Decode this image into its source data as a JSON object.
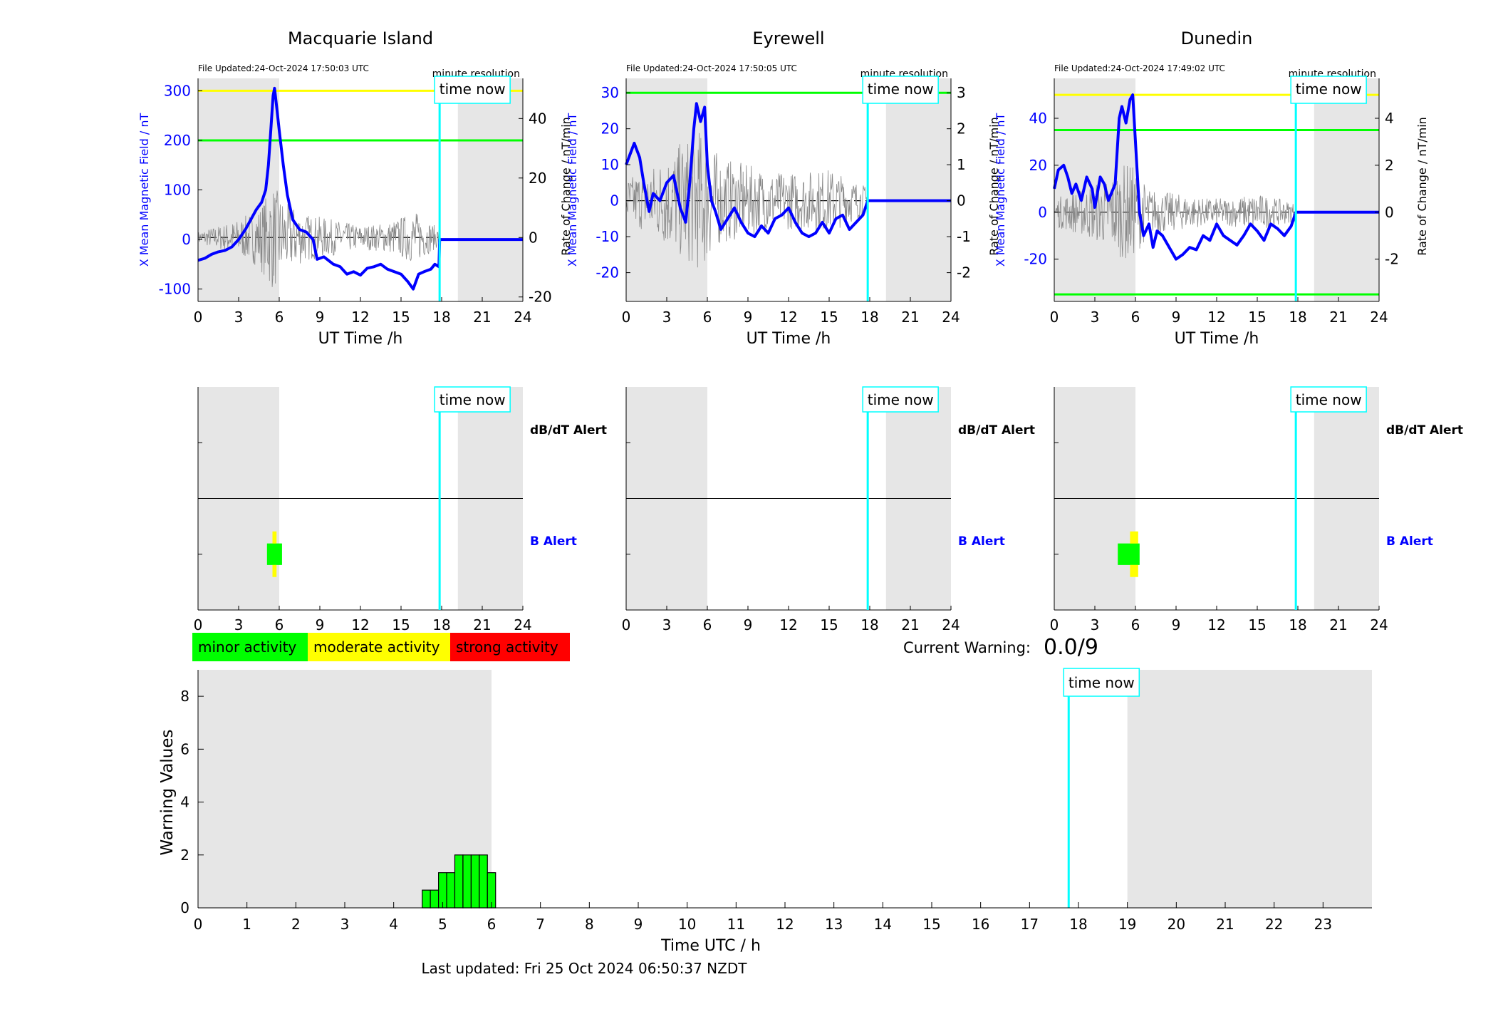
{
  "footer": {
    "last_updated": "Last updated: Fri 25 Oct 2024 06:50:37 NZDT"
  },
  "colors": {
    "blue": "#0000ff",
    "green": "#00ff00",
    "yellow": "#ffff00",
    "red": "#ff0000",
    "cyan": "#00ffff",
    "shade": "#e6e6e6"
  },
  "time_now_label": "time now",
  "x_axis_label": "UT Time /h",
  "file_updated_suffix": "minute resolution",
  "stations": [
    {
      "name": "Macquarie Island",
      "file_updated": "File Updated:24-Oct-2024 17:50:03 UTC",
      "ylabel_left": "X Mean Magnetic Field / nT",
      "ylabel_right": "Rate of Change / nT/min",
      "ylim_left": [
        -125,
        325
      ],
      "yticks_left": [
        -100,
        0,
        100,
        200,
        300
      ],
      "ylim_right": [
        -21.5,
        53.5
      ],
      "yticks_right": [
        -20,
        0,
        20,
        40
      ],
      "thresholds": [
        {
          "value": 300,
          "color": "yellow"
        },
        {
          "value": 200,
          "color": "green"
        }
      ],
      "shade": [
        [
          0,
          6
        ],
        [
          19.2,
          24
        ]
      ],
      "time_now": 17.85,
      "x_series": [
        [
          0,
          -42
        ],
        [
          0.5,
          -38
        ],
        [
          1,
          -30
        ],
        [
          1.5,
          -25
        ],
        [
          2,
          -22
        ],
        [
          2.5,
          -15
        ],
        [
          3,
          0
        ],
        [
          3.5,
          20
        ],
        [
          3.9,
          40
        ],
        [
          4.3,
          60
        ],
        [
          4.7,
          75
        ],
        [
          5,
          100
        ],
        [
          5.2,
          150
        ],
        [
          5.4,
          230
        ],
        [
          5.55,
          290
        ],
        [
          5.65,
          305
        ],
        [
          5.8,
          270
        ],
        [
          6,
          220
        ],
        [
          6.3,
          150
        ],
        [
          6.6,
          90
        ],
        [
          7,
          40
        ],
        [
          7.5,
          20
        ],
        [
          8,
          15
        ],
        [
          8.5,
          0
        ],
        [
          8.8,
          -40
        ],
        [
          9.3,
          -35
        ],
        [
          10,
          -50
        ],
        [
          10.5,
          -55
        ],
        [
          11,
          -70
        ],
        [
          11.5,
          -65
        ],
        [
          12,
          -72
        ],
        [
          12.5,
          -58
        ],
        [
          13,
          -55
        ],
        [
          13.5,
          -50
        ],
        [
          14,
          -60
        ],
        [
          14.5,
          -65
        ],
        [
          15,
          -70
        ],
        [
          15.5,
          -85
        ],
        [
          15.9,
          -100
        ],
        [
          16.3,
          -70
        ],
        [
          16.7,
          -65
        ],
        [
          17.2,
          -60
        ],
        [
          17.5,
          -50
        ],
        [
          17.8,
          -55
        ],
        [
          17.85,
          0
        ],
        [
          24,
          0
        ]
      ],
      "noise_amp_right": [
        [
          0,
          2
        ],
        [
          3,
          6
        ],
        [
          4.5,
          10
        ],
        [
          5.5,
          18
        ],
        [
          6.5,
          12
        ],
        [
          8,
          8
        ],
        [
          10,
          6
        ],
        [
          12,
          4
        ],
        [
          14,
          5
        ],
        [
          16,
          9
        ],
        [
          17.8,
          3
        ]
      ],
      "alerts": {
        "dbdt": [],
        "b": [
          {
            "start": 5.1,
            "end": 6.2,
            "color": "green"
          },
          {
            "start": 5.5,
            "end": 5.8,
            "color": "yellow"
          }
        ]
      }
    },
    {
      "name": "Eyrewell",
      "file_updated": "File Updated:24-Oct-2024 17:50:05 UTC",
      "ylabel_left": "X Mean Magnetic Field / nT",
      "ylabel_right": "Rate of Change / nT/min",
      "ylim_left": [
        -28,
        34
      ],
      "yticks_left": [
        -20,
        -10,
        0,
        10,
        20,
        30
      ],
      "ylim_right": [
        -2.8,
        3.4
      ],
      "yticks_right": [
        -2,
        -1,
        0,
        1,
        2,
        3
      ],
      "thresholds": [
        {
          "value": 30,
          "color": "green"
        }
      ],
      "shade": [
        [
          0,
          6
        ],
        [
          19.2,
          24
        ]
      ],
      "time_now": 17.85,
      "x_series": [
        [
          0,
          10
        ],
        [
          0.3,
          13
        ],
        [
          0.6,
          16
        ],
        [
          1,
          12
        ],
        [
          1.3,
          5
        ],
        [
          1.7,
          -3
        ],
        [
          2,
          2
        ],
        [
          2.5,
          0
        ],
        [
          3,
          5
        ],
        [
          3.5,
          7
        ],
        [
          4,
          -2
        ],
        [
          4.4,
          -6
        ],
        [
          4.7,
          5
        ],
        [
          5,
          20
        ],
        [
          5.2,
          27
        ],
        [
          5.5,
          22
        ],
        [
          5.8,
          26
        ],
        [
          6,
          10
        ],
        [
          6.3,
          0
        ],
        [
          6.6,
          -3
        ],
        [
          7,
          -8
        ],
        [
          7.5,
          -5
        ],
        [
          8,
          -2
        ],
        [
          8.5,
          -6
        ],
        [
          9,
          -9
        ],
        [
          9.5,
          -10
        ],
        [
          10,
          -7
        ],
        [
          10.5,
          -9
        ],
        [
          11,
          -5
        ],
        [
          11.5,
          -4
        ],
        [
          12,
          -2
        ],
        [
          12.5,
          -6
        ],
        [
          13,
          -9
        ],
        [
          13.5,
          -10
        ],
        [
          14,
          -9
        ],
        [
          14.5,
          -6
        ],
        [
          15,
          -9
        ],
        [
          15.5,
          -5
        ],
        [
          16,
          -4
        ],
        [
          16.5,
          -8
        ],
        [
          17,
          -6
        ],
        [
          17.5,
          -4
        ],
        [
          17.85,
          0
        ],
        [
          24,
          0
        ]
      ],
      "noise_amp_right": [
        [
          0,
          0.6
        ],
        [
          2,
          1
        ],
        [
          4,
          1.6
        ],
        [
          5.5,
          2
        ],
        [
          7,
          1.2
        ],
        [
          9,
          1
        ],
        [
          11,
          0.8
        ],
        [
          13,
          0.8
        ],
        [
          15,
          0.9
        ],
        [
          17.8,
          0.4
        ]
      ],
      "alerts": {
        "dbdt": [],
        "b": []
      }
    },
    {
      "name": "Dunedin",
      "file_updated": "File Updated:24-Oct-2024 17:49:02 UTC",
      "ylabel_left": "X Mean Magnetic Field / nT",
      "ylabel_right": "Rate of Change / nT/min",
      "ylim_left": [
        -38,
        57
      ],
      "yticks_left": [
        -20,
        0,
        20,
        40
      ],
      "ylim_right": [
        -3.8,
        5.7
      ],
      "yticks_right": [
        -2,
        0,
        2,
        4
      ],
      "thresholds": [
        {
          "value": 50,
          "color": "yellow"
        },
        {
          "value": 35,
          "color": "green"
        },
        {
          "value": -35,
          "color": "green"
        }
      ],
      "shade": [
        [
          0,
          6
        ],
        [
          19.2,
          24
        ]
      ],
      "time_now": 17.85,
      "x_series": [
        [
          0,
          10
        ],
        [
          0.3,
          18
        ],
        [
          0.7,
          20
        ],
        [
          1,
          15
        ],
        [
          1.3,
          8
        ],
        [
          1.6,
          12
        ],
        [
          2,
          5
        ],
        [
          2.4,
          15
        ],
        [
          2.8,
          10
        ],
        [
          3,
          2
        ],
        [
          3.4,
          15
        ],
        [
          3.7,
          12
        ],
        [
          4,
          5
        ],
        [
          4.5,
          12
        ],
        [
          4.8,
          40
        ],
        [
          5,
          45
        ],
        [
          5.3,
          38
        ],
        [
          5.6,
          48
        ],
        [
          5.8,
          50
        ],
        [
          6,
          30
        ],
        [
          6.3,
          0
        ],
        [
          6.6,
          -10
        ],
        [
          7,
          -5
        ],
        [
          7.3,
          -15
        ],
        [
          7.6,
          -8
        ],
        [
          8,
          -10
        ],
        [
          8.5,
          -15
        ],
        [
          9,
          -20
        ],
        [
          9.5,
          -18
        ],
        [
          10,
          -15
        ],
        [
          10.5,
          -16
        ],
        [
          11,
          -10
        ],
        [
          11.5,
          -12
        ],
        [
          12,
          -5
        ],
        [
          12.5,
          -10
        ],
        [
          13,
          -12
        ],
        [
          13.5,
          -14
        ],
        [
          14,
          -10
        ],
        [
          14.5,
          -5
        ],
        [
          15,
          -8
        ],
        [
          15.5,
          -12
        ],
        [
          16,
          -5
        ],
        [
          16.5,
          -7
        ],
        [
          17,
          -10
        ],
        [
          17.5,
          -6
        ],
        [
          17.85,
          0
        ],
        [
          24,
          0
        ]
      ],
      "noise_amp_right": [
        [
          0,
          0.6
        ],
        [
          2,
          1
        ],
        [
          4,
          1.5
        ],
        [
          5.5,
          2.2
        ],
        [
          7,
          1
        ],
        [
          9,
          0.8
        ],
        [
          11,
          0.6
        ],
        [
          13,
          0.6
        ],
        [
          15,
          0.8
        ],
        [
          17.8,
          0.4
        ]
      ],
      "alerts": {
        "dbdt": [],
        "b": [
          {
            "start": 4.7,
            "end": 6.3,
            "color": "green"
          },
          {
            "start": 5.6,
            "end": 6.2,
            "color": "yellow"
          }
        ]
      }
    }
  ],
  "alert_panel": {
    "dbdt_label": "dB/dT Alert",
    "b_label": "B Alert"
  },
  "legend": [
    {
      "label": "minor activity",
      "color": "green"
    },
    {
      "label": "moderate activity",
      "color": "yellow"
    },
    {
      "label": "strong activity",
      "color": "red"
    }
  ],
  "current_warning": {
    "label": "Current Warning:",
    "value": "0.0/9"
  },
  "chart_data": {
    "type": "bar",
    "title": "",
    "xlabel": "Time UTC / h",
    "ylabel": "Warning Values",
    "xlim": [
      0,
      24
    ],
    "ylim": [
      0,
      9
    ],
    "xticks": [
      0,
      1,
      2,
      3,
      4,
      5,
      6,
      7,
      8,
      9,
      10,
      11,
      12,
      13,
      14,
      15,
      16,
      17,
      18,
      19,
      20,
      21,
      22,
      23
    ],
    "yticks": [
      0,
      2,
      4,
      6,
      8
    ],
    "shade": [
      [
        0,
        6
      ],
      [
        19,
        24
      ]
    ],
    "time_now": 17.8,
    "bar_width_h": 0.1667,
    "bars": [
      {
        "x": 4.667,
        "value": 0.67
      },
      {
        "x": 4.833,
        "value": 0.67
      },
      {
        "x": 5.0,
        "value": 1.33
      },
      {
        "x": 5.167,
        "value": 1.33
      },
      {
        "x": 5.333,
        "value": 2.0
      },
      {
        "x": 5.5,
        "value": 2.0
      },
      {
        "x": 5.667,
        "value": 2.0
      },
      {
        "x": 5.833,
        "value": 2.0
      },
      {
        "x": 6.0,
        "value": 1.33
      }
    ]
  }
}
